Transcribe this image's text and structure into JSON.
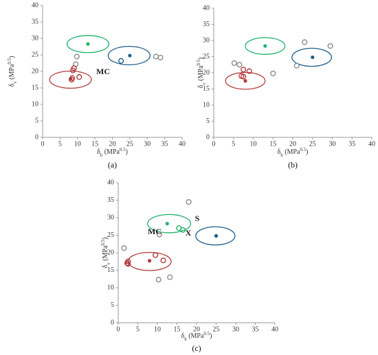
{
  "chart_data": [
    {
      "type": "scatter",
      "label": "(a)",
      "xlabel": [
        "δ",
        "h",
        " (MPa",
        "0.5",
        ")"
      ],
      "ylabel": [
        "δ",
        "v",
        " (MPa",
        "0.5",
        ")"
      ],
      "xlim": [
        0,
        40
      ],
      "ylim": [
        0,
        40
      ],
      "xticks": [
        0,
        5,
        10,
        15,
        20,
        25,
        30,
        35,
        40
      ],
      "yticks": [
        0,
        5,
        10,
        15,
        20,
        25,
        30,
        35,
        40
      ],
      "series": [
        {
          "color": "#8c8c8c",
          "filled": false,
          "x": [
            9.8,
            9.5,
            32.5,
            33.8
          ],
          "y": [
            24.5,
            22.2,
            24.5,
            24.2
          ]
        },
        {
          "color": "#b23b3b",
          "filled": false,
          "x": [
            9,
            8.7,
            8.5,
            8.3,
            10.5
          ],
          "y": [
            21,
            20.3,
            18,
            17.5,
            18.3
          ]
        },
        {
          "color": "#b23b3b",
          "filled": true,
          "x": [
            8
          ],
          "y": [
            17.7
          ]
        },
        {
          "color": "#1f5f8b",
          "filled": false,
          "x": [
            22.5
          ],
          "y": [
            23.2
          ]
        },
        {
          "color": "#1f5f8b",
          "filled": true,
          "x": [
            25
          ],
          "y": [
            24.8
          ]
        },
        {
          "color": "#1db36b",
          "filled": true,
          "x": [
            13
          ],
          "y": [
            28.3
          ]
        }
      ],
      "ellipses": [
        {
          "color": "#1db36b",
          "cx": 13,
          "cy": 28.3,
          "rx": 6,
          "ry": 2.6
        },
        {
          "color": "#1f5f8b",
          "cx": 24.8,
          "cy": 24.8,
          "rx": 6,
          "ry": 2.8
        },
        {
          "color": "#b23b3b",
          "cx": 8,
          "cy": 17.5,
          "rx": 6,
          "ry": 2.6
        }
      ],
      "annotations": [
        "MC"
      ]
    },
    {
      "type": "scatter",
      "label": "(b)",
      "xlabel": [
        "δ",
        "h",
        " (MPa",
        "0.5",
        ")"
      ],
      "ylabel": [
        "δ",
        "v",
        " (MPa",
        "0.5",
        ")"
      ],
      "xlim": [
        0,
        40
      ],
      "ylim": [
        0,
        40
      ],
      "xticks": [
        0,
        5,
        10,
        15,
        20,
        25,
        30,
        35,
        40
      ],
      "yticks": [
        0,
        5,
        10,
        15,
        20,
        25,
        30,
        35,
        40
      ],
      "series": [
        {
          "color": "#8c8c8c",
          "filled": false,
          "x": [
            5.2,
            6.5,
            15,
            21,
            23,
            29.5
          ],
          "y": [
            23,
            22.5,
            19.8,
            22.2,
            29.5,
            28.3
          ]
        },
        {
          "color": "#b23b3b",
          "filled": false,
          "x": [
            7.5,
            9,
            7,
            7.5
          ],
          "y": [
            21,
            20.5,
            19,
            18.8
          ]
        },
        {
          "color": "#b23b3b",
          "filled": true,
          "x": [
            8
          ],
          "y": [
            17.5
          ]
        },
        {
          "color": "#1f5f8b",
          "filled": true,
          "x": [
            25
          ],
          "y": [
            24.8
          ]
        },
        {
          "color": "#1db36b",
          "filled": true,
          "x": [
            13
          ],
          "y": [
            28.3
          ]
        }
      ],
      "ellipses": [
        {
          "color": "#1db36b",
          "cx": 13,
          "cy": 28.3,
          "rx": 5,
          "ry": 2.6
        },
        {
          "color": "#1f5f8b",
          "cx": 24.8,
          "cy": 24.8,
          "rx": 5,
          "ry": 2.8
        },
        {
          "color": "#b23b3b",
          "cx": 8,
          "cy": 17.5,
          "rx": 5,
          "ry": 2.6
        }
      ],
      "annotations": []
    },
    {
      "type": "scatter",
      "label": "(c)",
      "xlabel": [
        "δ",
        "h",
        " (MPa",
        "0.5",
        ")"
      ],
      "ylabel": [
        "δ",
        "v",
        " (MPa",
        "0.5",
        ")"
      ],
      "xlim": [
        0,
        40
      ],
      "ylim": [
        0,
        40
      ],
      "xticks": [
        0,
        5,
        10,
        15,
        20,
        25,
        30,
        35,
        40
      ],
      "yticks": [
        0,
        5,
        10,
        15,
        20,
        25,
        30,
        35,
        40
      ],
      "series": [
        {
          "color": "#8c8c8c",
          "filled": false,
          "x": [
            1.5,
            10.5,
            18,
            10.3,
            13.2
          ],
          "y": [
            21.3,
            25.2,
            34.5,
            12.3,
            13
          ]
        },
        {
          "color": "#b23b3b",
          "filled": false,
          "x": [
            2.5,
            2.3,
            2.5,
            9.5,
            11.5
          ],
          "y": [
            17.5,
            17,
            16.8,
            19.3,
            17.8
          ]
        },
        {
          "color": "#b23b3b",
          "filled": true,
          "x": [
            8
          ],
          "y": [
            17.7
          ]
        },
        {
          "color": "#1db36b",
          "filled": false,
          "x": [
            15.5,
            16.5
          ],
          "y": [
            27,
            26.5
          ]
        },
        {
          "color": "#1db36b",
          "filled": true,
          "x": [
            12.5
          ],
          "y": [
            28.3
          ]
        },
        {
          "color": "#1f5f8b",
          "filled": true,
          "x": [
            25
          ],
          "y": [
            24.8
          ]
        }
      ],
      "ellipses": [
        {
          "color": "#1db36b",
          "cx": 13,
          "cy": 28.3,
          "rx": 5.5,
          "ry": 2.6
        },
        {
          "color": "#1f5f8b",
          "cx": 24.8,
          "cy": 24.8,
          "rx": 5,
          "ry": 2.6
        },
        {
          "color": "#b23b3b",
          "cx": 8,
          "cy": 17.5,
          "rx": 5.5,
          "ry": 2.6
        }
      ],
      "annotations": [
        "MC",
        "S",
        "X"
      ]
    }
  ]
}
